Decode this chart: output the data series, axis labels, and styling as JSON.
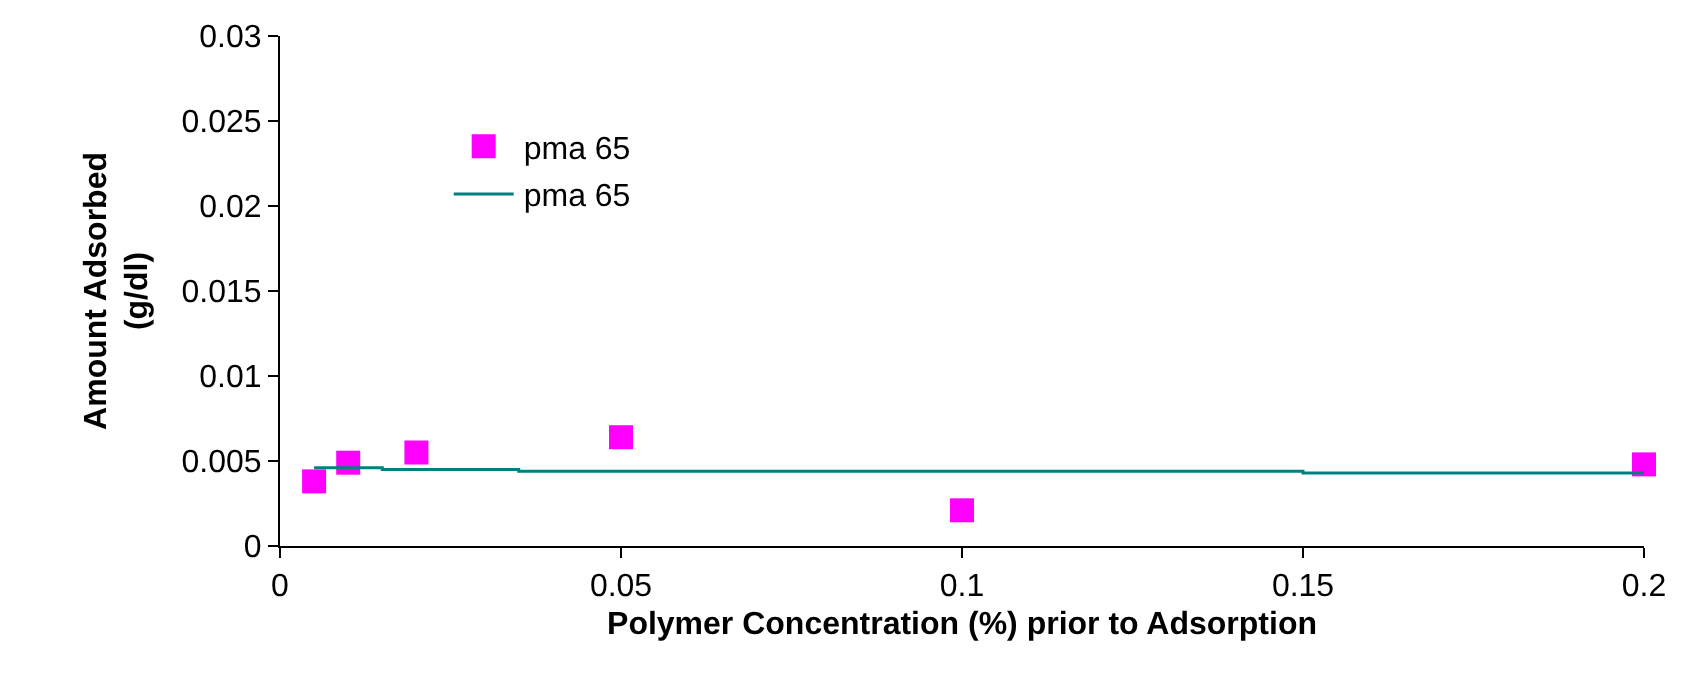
{
  "chart_data": {
    "type": "scatter",
    "xlabel": "Polymer Concentration (%) prior to Adsorption",
    "ylabel": "Amount Adsorbed\n(g/dl)",
    "series": [
      {
        "name": "pma 65",
        "marker": "square",
        "color": "#ff00ff",
        "x": [
          0.005,
          0.01,
          0.02,
          0.05,
          0.1,
          0.2
        ],
        "values": [
          0.0038,
          0.0049,
          0.0055,
          0.0064,
          0.0021,
          0.0048
        ]
      },
      {
        "name": "pma 65",
        "type": "line",
        "color": "#008080",
        "x": [
          0.005,
          0.015,
          0.015,
          0.035,
          0.035,
          0.15,
          0.15,
          0.2
        ],
        "values": [
          0.0046,
          0.0046,
          0.0045,
          0.0045,
          0.0044,
          0.0044,
          0.0043,
          0.0043
        ]
      }
    ],
    "xlim": [
      0,
      0.2
    ],
    "xticks": [
      0,
      0.05,
      0.1,
      0.15,
      0.2
    ],
    "ylim": [
      0,
      0.03
    ],
    "yticks": [
      0,
      0.005,
      0.01,
      0.015,
      0.02,
      0.025,
      0.03
    ],
    "legend": "top left"
  }
}
